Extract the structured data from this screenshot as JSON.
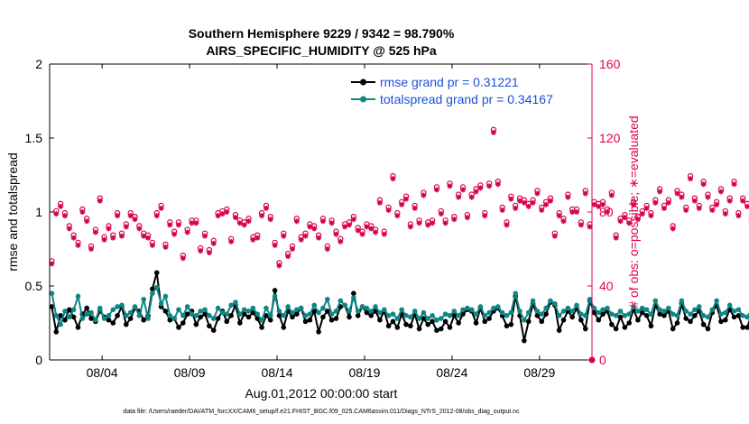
{
  "chart_data": {
    "type": "line",
    "title_line1": "Southern Hemisphere 9229 / 9342 = 98.790%",
    "title_line2": "AIRS_SPECIFIC_HUMIDITY @ 525 hPa",
    "xlabel": "Aug.01,2012 00:00:00 start",
    "ylabel": "rmse and totalspread",
    "y2label": "# of obs: o=possible; ∗=evaluated",
    "footnote": "data file: /Users/raeder/DAI/ATM_forcXX/CAM6_setup/f.e21.FHIST_BGC.f09_025.CAM6assim.011/Diags_NTrS_2012-08/obs_diag_output.nc",
    "xlim": [
      1,
      32
    ],
    "ylim": [
      0,
      2
    ],
    "y2lim": [
      0,
      160
    ],
    "xticks": [
      {
        "x": 4,
        "label": "08/04"
      },
      {
        "x": 9,
        "label": "08/09"
      },
      {
        "x": 14,
        "label": "08/14"
      },
      {
        "x": 19,
        "label": "08/19"
      },
      {
        "x": 24,
        "label": "08/24"
      },
      {
        "x": 29,
        "label": "08/29"
      }
    ],
    "yticks": [
      {
        "v": 0,
        "label": "0"
      },
      {
        "v": 0.5,
        "label": "0.5"
      },
      {
        "v": 1,
        "label": "1"
      },
      {
        "v": 1.5,
        "label": "1.5"
      },
      {
        "v": 2,
        "label": "2"
      }
    ],
    "y2ticks": [
      {
        "v": 0,
        "label": "0"
      },
      {
        "v": 40,
        "label": "40"
      },
      {
        "v": 80,
        "label": "80"
      },
      {
        "v": 120,
        "label": "120"
      },
      {
        "v": 160,
        "label": "160"
      }
    ],
    "colors": {
      "rmse": "#000000",
      "spread": "#0f8686",
      "obs": "#d6004f",
      "legend_text": "#1a4fd8"
    },
    "start_day": 1.125,
    "step_days": 0.25,
    "series": [
      {
        "name": "rmse",
        "legend": "rmse grand pr = 0.31221",
        "values": [
          0.36,
          0.19,
          0.3,
          0.27,
          0.34,
          0.29,
          0.22,
          0.31,
          0.35,
          0.28,
          0.26,
          0.33,
          0.29,
          0.27,
          0.25,
          0.3,
          0.36,
          0.24,
          0.28,
          0.35,
          0.33,
          0.27,
          0.3,
          0.48,
          0.59,
          0.36,
          0.33,
          0.27,
          0.28,
          0.22,
          0.25,
          0.31,
          0.33,
          0.24,
          0.29,
          0.31,
          0.23,
          0.2,
          0.28,
          0.33,
          0.26,
          0.3,
          0.37,
          0.25,
          0.31,
          0.29,
          0.32,
          0.28,
          0.22,
          0.3,
          0.27,
          0.47,
          0.3,
          0.22,
          0.33,
          0.29,
          0.31,
          0.35,
          0.26,
          0.27,
          0.33,
          0.19,
          0.29,
          0.33,
          0.27,
          0.28,
          0.36,
          0.37,
          0.29,
          0.45,
          0.3,
          0.36,
          0.32,
          0.3,
          0.33,
          0.27,
          0.33,
          0.23,
          0.26,
          0.22,
          0.31,
          0.24,
          0.23,
          0.31,
          0.21,
          0.28,
          0.24,
          0.26,
          0.2,
          0.21,
          0.26,
          0.22,
          0.3,
          0.25,
          0.31,
          0.34,
          0.33,
          0.25,
          0.35,
          0.26,
          0.28,
          0.33,
          0.35,
          0.3,
          0.23,
          0.24,
          0.43,
          0.3,
          0.13,
          0.26,
          0.38,
          0.3,
          0.26,
          0.31,
          0.39,
          0.37,
          0.2,
          0.27,
          0.33,
          0.29,
          0.35,
          0.27,
          0.21,
          0.4,
          0.32,
          0.27,
          0.31,
          0.33,
          0.24,
          0.21,
          0.29,
          0.22,
          0.25,
          0.34,
          0.27,
          0.32,
          0.3,
          0.23,
          0.37,
          0.31,
          0.3,
          0.33,
          0.21,
          0.25,
          0.38,
          0.28,
          0.26,
          0.3,
          0.33,
          0.24,
          0.21,
          0.32,
          0.37,
          0.26,
          0.27,
          0.34,
          0.29,
          0.3,
          0.22,
          0.22,
          0.31,
          0.2,
          0.27,
          0.33
        ]
      },
      {
        "name": "totalspread",
        "legend": "totalspread grand pr = 0.34167",
        "values": [
          0.45,
          0.3,
          0.24,
          0.33,
          0.29,
          0.34,
          0.43,
          0.28,
          0.31,
          0.32,
          0.27,
          0.35,
          0.28,
          0.3,
          0.34,
          0.36,
          0.37,
          0.3,
          0.32,
          0.36,
          0.3,
          0.41,
          0.28,
          0.45,
          0.49,
          0.38,
          0.43,
          0.3,
          0.28,
          0.34,
          0.3,
          0.36,
          0.31,
          0.3,
          0.33,
          0.34,
          0.3,
          0.28,
          0.35,
          0.32,
          0.31,
          0.37,
          0.39,
          0.31,
          0.34,
          0.33,
          0.35,
          0.31,
          0.27,
          0.35,
          0.3,
          0.43,
          0.33,
          0.3,
          0.36,
          0.32,
          0.34,
          0.35,
          0.3,
          0.31,
          0.37,
          0.32,
          0.35,
          0.41,
          0.31,
          0.33,
          0.4,
          0.37,
          0.33,
          0.42,
          0.33,
          0.36,
          0.35,
          0.33,
          0.36,
          0.32,
          0.34,
          0.3,
          0.31,
          0.28,
          0.34,
          0.3,
          0.29,
          0.33,
          0.28,
          0.32,
          0.28,
          0.3,
          0.27,
          0.28,
          0.31,
          0.3,
          0.33,
          0.3,
          0.34,
          0.35,
          0.34,
          0.31,
          0.36,
          0.3,
          0.32,
          0.35,
          0.36,
          0.32,
          0.3,
          0.32,
          0.45,
          0.33,
          0.27,
          0.32,
          0.4,
          0.33,
          0.31,
          0.35,
          0.4,
          0.38,
          0.3,
          0.33,
          0.35,
          0.33,
          0.37,
          0.31,
          0.3,
          0.41,
          0.35,
          0.32,
          0.34,
          0.35,
          0.31,
          0.3,
          0.33,
          0.3,
          0.31,
          0.36,
          0.33,
          0.35,
          0.34,
          0.31,
          0.4,
          0.34,
          0.33,
          0.35,
          0.31,
          0.3,
          0.4,
          0.33,
          0.31,
          0.34,
          0.36,
          0.3,
          0.29,
          0.34,
          0.4,
          0.31,
          0.32,
          0.37,
          0.33,
          0.34,
          0.3,
          0.29,
          0.34,
          0.28,
          0.33,
          0.35
        ]
      },
      {
        "name": "obs_count",
        "axis": "right",
        "values": [
          52,
          79,
          83,
          78,
          71,
          66,
          62,
          80,
          75,
          60,
          69,
          86,
          65,
          71,
          66,
          78,
          67,
          72,
          78,
          76,
          71,
          67,
          66,
          62,
          78,
          82,
          61,
          73,
          68,
          73,
          55,
          69,
          74,
          74,
          59,
          67,
          58,
          63,
          78,
          79,
          80,
          64,
          77,
          74,
          73,
          75,
          65,
          66,
          78,
          82,
          76,
          62,
          51,
          67,
          56,
          60,
          75,
          65,
          67,
          72,
          71,
          66,
          75,
          60,
          74,
          68,
          64,
          72,
          73,
          76,
          70,
          68,
          72,
          71,
          69,
          85,
          68,
          81,
          98,
          78,
          84,
          87,
          72,
          82,
          74,
          89,
          73,
          74,
          92,
          79,
          74,
          94,
          76,
          88,
          92,
          77,
          88,
          91,
          93,
          78,
          94,
          123,
          95,
          81,
          73,
          87,
          82,
          86,
          85,
          83,
          85,
          90,
          81,
          84,
          86,
          67,
          78,
          75,
          88,
          80,
          80,
          73,
          90,
          72,
          84,
          83,
          84,
          80,
          89,
          66,
          75,
          77,
          74,
          84,
          76,
          79,
          82,
          78,
          85,
          91,
          82,
          85,
          71,
          90,
          88,
          81,
          98,
          86,
          82,
          95,
          88,
          81,
          84,
          91,
          79,
          86,
          95,
          78,
          86,
          83,
          75,
          82,
          87,
          80
        ]
      }
    ]
  }
}
